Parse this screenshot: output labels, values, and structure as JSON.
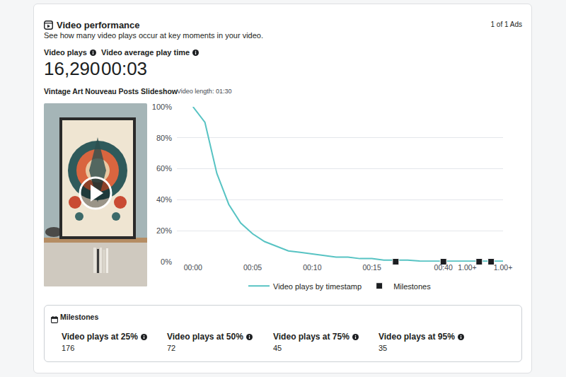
{
  "header": {
    "title": "Video performance",
    "subtitle": "See how many video plays occur at key moments in your video.",
    "pager": "1 of 1 Ads"
  },
  "summary": [
    {
      "label": "Video plays",
      "value": "16,290"
    },
    {
      "label": "Video average play time",
      "value": "00:03"
    }
  ],
  "video": {
    "title": "Vintage Art Nouveau Posts Slideshow",
    "length": "Video length: 01:30"
  },
  "chart_data": {
    "type": "line",
    "categories": [
      "00:00",
      null,
      null,
      null,
      null,
      "00:05",
      null,
      null,
      null,
      null,
      "00:10",
      null,
      null,
      null,
      null,
      "00:15",
      null,
      null,
      null,
      null,
      null,
      "00:40",
      null,
      "1.00+",
      null,
      null,
      "1.00+"
    ],
    "series": [
      {
        "name": "Video plays by timestamp",
        "color": "#57c3c3",
        "values": [
          100,
          90,
          57,
          37,
          25,
          18,
          13,
          10,
          7,
          6,
          5,
          4,
          3,
          3,
          2,
          2,
          1,
          1,
          1,
          0.5,
          0.5,
          0.5,
          0.3,
          0.3,
          0.3,
          0.3,
          0.3
        ]
      },
      {
        "name": "Milestones",
        "type": "scatter",
        "marker": "square",
        "color": "#1c1e21",
        "values": [
          null,
          null,
          null,
          null,
          null,
          null,
          null,
          null,
          null,
          null,
          null,
          null,
          null,
          null,
          null,
          null,
          null,
          0,
          null,
          null,
          null,
          0,
          null,
          null,
          0,
          0,
          null
        ]
      }
    ],
    "ylim": [
      0,
      100
    ],
    "yticks": [
      {
        "value": 0,
        "label": "0%"
      },
      {
        "value": 20,
        "label": "20%"
      },
      {
        "value": 40,
        "label": "40%"
      },
      {
        "value": 60,
        "label": "60%"
      },
      {
        "value": 80,
        "label": "80%"
      },
      {
        "value": 100,
        "label": "100%"
      }
    ],
    "grid": true,
    "legend": "bottom"
  },
  "milestones": {
    "title": "Milestones",
    "items": [
      {
        "label": "Video plays at 25%",
        "value": 176
      },
      {
        "label": "Video plays at 50%",
        "value": 72
      },
      {
        "label": "Video plays at 75%",
        "value": 45
      },
      {
        "label": "Video plays at 95%",
        "value": 35
      }
    ]
  }
}
